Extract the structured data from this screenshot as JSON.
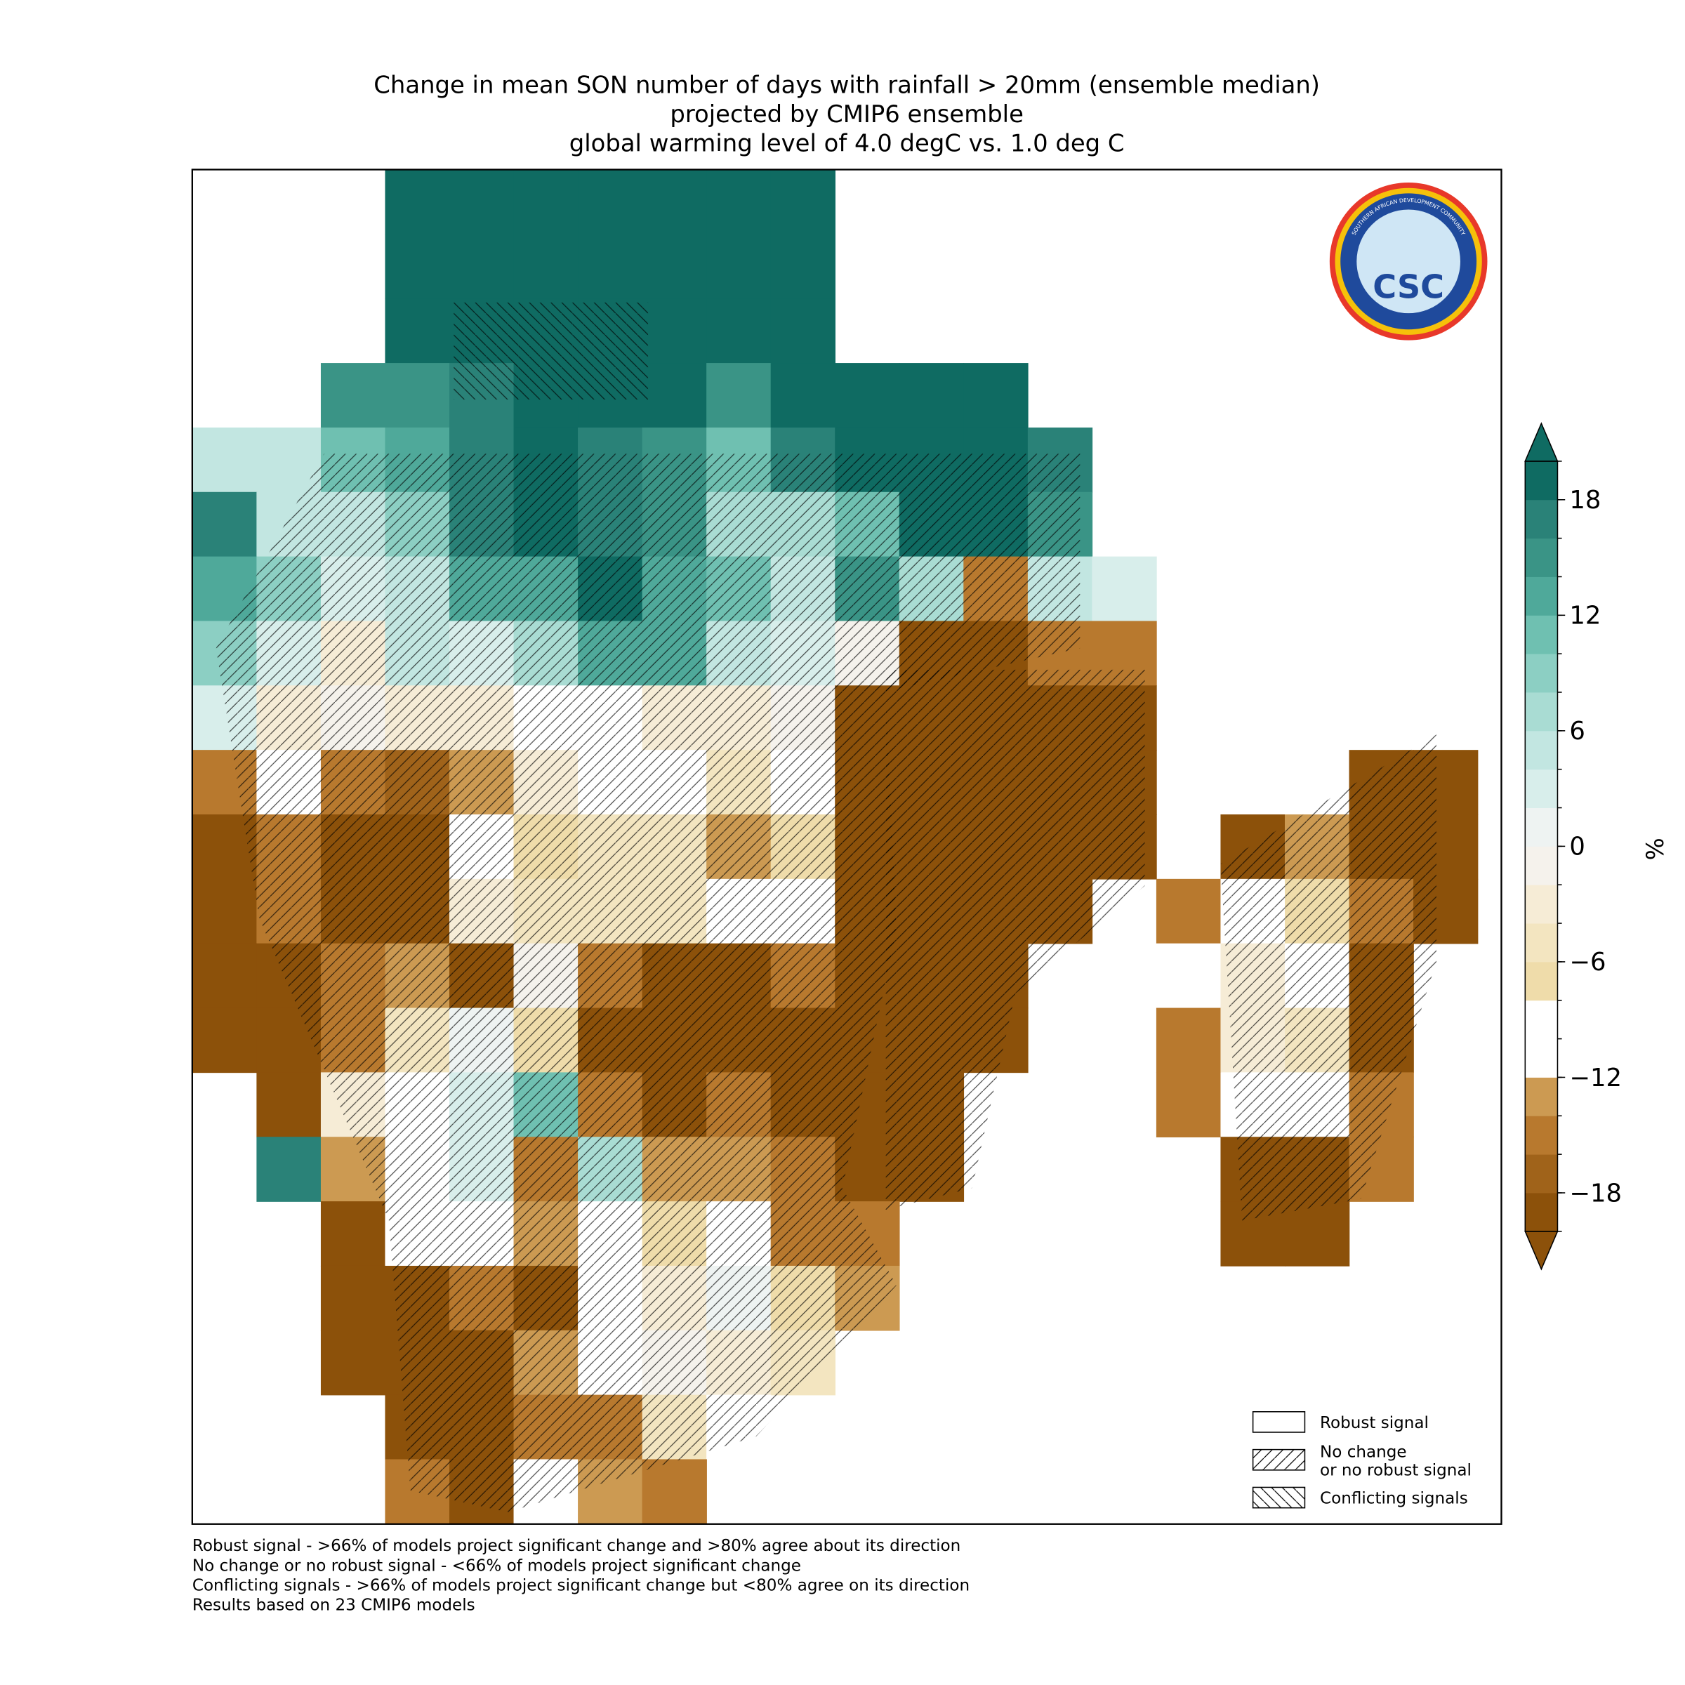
{
  "chart_data": {
    "type": "map",
    "title": [
      "Change in mean SON number of days with rainfall > 20mm (ensemble median)",
      "projected by CMIP6 ensemble",
      "global warming level of 4.0 degC vs. 1.0 deg C"
    ],
    "logo": {
      "text": "CSC",
      "ring_text": "SOUTHERN AFRICAN DEVELOPMENT COMMUNITY"
    },
    "colorbar": {
      "label": "%",
      "levels": [
        -20,
        -18,
        -16,
        -14,
        -12,
        -10,
        -8,
        -6,
        -4,
        -2,
        0,
        2,
        4,
        6,
        8,
        10,
        12,
        14,
        16,
        18,
        20
      ],
      "colors": [
        "#8c510a",
        "#a0631a",
        "#b8792e",
        "#cc9a52",
        "#ffffff",
        "#ffffff",
        "#efdcaa",
        "#f3e5c0",
        "#f6ecd6",
        "#f5f2ec",
        "#eef3f2",
        "#d8eeeb",
        "#c2e6e1",
        "#a9dcd3",
        "#8ccfc3",
        "#6fc0b1",
        "#4fa99a",
        "#3a9486",
        "#2a8278",
        "#0f6b62"
      ],
      "ticks": [
        {
          "value": 18,
          "label": "18"
        },
        {
          "value": 12,
          "label": "12"
        },
        {
          "value": 6,
          "label": "6"
        },
        {
          "value": 0,
          "label": "0"
        },
        {
          "value": -6,
          "label": "−6"
        },
        {
          "value": -12,
          "label": "−12"
        },
        {
          "value": -18,
          "label": "−18"
        }
      ]
    },
    "grid": [
      [
        null,
        null,
        null,
        19,
        19,
        19,
        19,
        19,
        19,
        19,
        null,
        null,
        null,
        null,
        null,
        null,
        null,
        null,
        null,
        null
      ],
      [
        null,
        null,
        null,
        19,
        19,
        19,
        19,
        19,
        19,
        19,
        null,
        null,
        null,
        null,
        null,
        null,
        null,
        null,
        null,
        null
      ],
      [
        null,
        null,
        null,
        19,
        19,
        19,
        19,
        19,
        19,
        19,
        null,
        null,
        null,
        null,
        null,
        null,
        null,
        null,
        null,
        null
      ],
      [
        null,
        null,
        15,
        15,
        17,
        19,
        19,
        19,
        15,
        19,
        19,
        19,
        19,
        null,
        null,
        null,
        null,
        null,
        null,
        null
      ],
      [
        5,
        4,
        10,
        12,
        17,
        19,
        17,
        15,
        10,
        17,
        19,
        19,
        19,
        17,
        null,
        null,
        null,
        null,
        null,
        null
      ],
      [
        17,
        4,
        4,
        9,
        17,
        19,
        17,
        15,
        6,
        6,
        11,
        19,
        19,
        15,
        null,
        null,
        null,
        null,
        null,
        null
      ],
      [
        13,
        8,
        3,
        4,
        12,
        13,
        18,
        12,
        10,
        5,
        15,
        6,
        -15,
        5,
        3,
        null,
        null,
        null,
        null,
        null
      ],
      [
        8,
        2,
        -4,
        4,
        3,
        6,
        13,
        12,
        4,
        3,
        -2,
        -19,
        -19,
        -15,
        -15,
        null,
        null,
        null,
        null,
        null
      ],
      [
        3,
        -4,
        -2,
        -3,
        -4,
        -12,
        -10,
        -4,
        -4,
        -2,
        -19,
        -19,
        -19,
        -19,
        -19,
        null,
        null,
        null,
        null,
        null
      ],
      [
        -16,
        -12,
        -16,
        -18,
        -14,
        -4,
        -10,
        -10,
        -6,
        -10,
        -19,
        -19,
        -19,
        -19,
        -19,
        null,
        null,
        null,
        -19,
        -19
      ],
      [
        -19,
        -15,
        -19,
        -19,
        -10,
        -8,
        -6,
        -6,
        -14,
        -8,
        -19,
        -19,
        -19,
        -19,
        -19,
        null,
        -19,
        -14,
        -19,
        -19
      ],
      [
        -19,
        -16,
        -19,
        -19,
        -4,
        -6,
        -6,
        -6,
        -10,
        -10,
        -19,
        -19,
        -19,
        -19,
        null,
        -16,
        -10,
        -8,
        -16,
        -19
      ],
      [
        -19,
        -19,
        -16,
        -14,
        -19,
        -2,
        -16,
        -19,
        -19,
        -16,
        -19,
        -19,
        -19,
        null,
        null,
        -10,
        -4,
        -10,
        -19,
        null
      ],
      [
        -19,
        -19,
        -16,
        -5,
        0,
        -8,
        -19,
        -19,
        -19,
        -19,
        -19,
        -19,
        -19,
        null,
        null,
        -15,
        -4,
        -6,
        -19,
        null
      ],
      [
        null,
        -19,
        -4,
        -10,
        2,
        10,
        -16,
        -19,
        -16,
        -19,
        -19,
        -19,
        null,
        null,
        null,
        -16,
        -10,
        -10,
        -16,
        null
      ],
      [
        null,
        16,
        -14,
        -10,
        2,
        -16,
        6,
        -14,
        -14,
        -16,
        -19,
        -19,
        null,
        null,
        null,
        null,
        -19,
        -19,
        -16,
        null
      ],
      [
        null,
        null,
        -19,
        -10,
        -10,
        -14,
        -10,
        -8,
        -10,
        -16,
        -16,
        null,
        null,
        null,
        null,
        null,
        -19,
        -19,
        null,
        null
      ],
      [
        null,
        null,
        -19,
        -19,
        -16,
        -19,
        -10,
        -4,
        0,
        -8,
        -13,
        null,
        null,
        null,
        null,
        null,
        null,
        null,
        null,
        null
      ],
      [
        null,
        null,
        -19,
        -19,
        -19,
        -14,
        -10,
        -2,
        -4,
        -5,
        null,
        null,
        null,
        null,
        null,
        null,
        null,
        null,
        null,
        null
      ],
      [
        null,
        null,
        null,
        -19,
        -19,
        -16,
        -16,
        -6,
        -10,
        null,
        null,
        null,
        null,
        null,
        null,
        null,
        null,
        null,
        null,
        null
      ],
      [
        null,
        null,
        null,
        -16,
        -19,
        -10,
        -14,
        -16,
        null,
        null,
        null,
        null,
        null,
        null,
        null,
        null,
        null,
        null,
        null,
        null
      ]
    ],
    "legend": [
      {
        "label": [
          "Robust signal"
        ],
        "hatch": "none"
      },
      {
        "label": [
          "No change",
          "or no robust signal"
        ],
        "hatch": "forward"
      },
      {
        "label": [
          "Conflicting signals"
        ],
        "hatch": "back"
      }
    ],
    "notes": [
      "Robust signal - >66% of models project significant change and >80% agree about its direction",
      "No change or no robust signal - <66% of models project significant change",
      "Conflicting signals - >66% of models project significant change but <80% agree on its direction",
      "Results based on 23 CMIP6 models"
    ]
  }
}
